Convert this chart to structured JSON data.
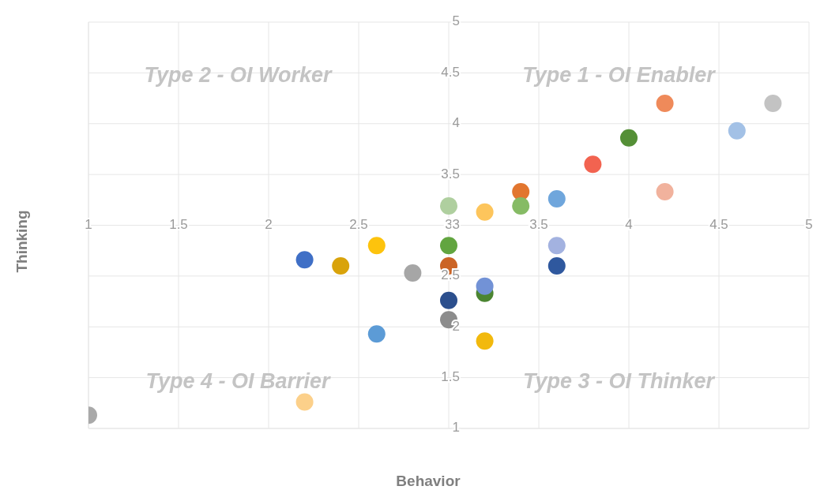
{
  "chart_data": {
    "type": "scatter",
    "xlabel": "Behavior",
    "ylabel": "Thinking",
    "annotations": [
      "Type 2 - OI Worker",
      "Type 1 - OI Enabler",
      "Type 4 - OI Barrier",
      "Type 3 - OI Thinker"
    ],
    "x": [
      4.2,
      4.8,
      4.6,
      4.0,
      3.8,
      4.2,
      3.4,
      3.6,
      3.4,
      3.0,
      3.2,
      2.6,
      3.0,
      3.6,
      2.2,
      2.4,
      3.0,
      3.6,
      2.8,
      3.2,
      3.2,
      3.0,
      3.0,
      2.6,
      3.2,
      2.2,
      1.0
    ],
    "values": [
      4.2,
      4.2,
      3.93,
      3.86,
      3.6,
      3.33,
      3.33,
      3.26,
      3.19,
      3.19,
      3.13,
      2.8,
      2.8,
      2.8,
      2.66,
      2.6,
      2.6,
      2.6,
      2.53,
      2.33,
      2.4,
      2.26,
      2.07,
      1.93,
      1.86,
      1.26,
      1.13
    ],
    "colors": [
      "#ef8a5a",
      "#c3c3c3",
      "#a3c1e6",
      "#548f36",
      "#f26350",
      "#f1b29d",
      "#e2762f",
      "#6fa6dc",
      "#86bb65",
      "#afcf9f",
      "#fdc55c",
      "#fdc30d",
      "#62a540",
      "#a3b2e0",
      "#3f6fc6",
      "#d9a30b",
      "#cb6426",
      "#2f589e",
      "#a6a6a6",
      "#4b8531",
      "#7292d6",
      "#2c4f8d",
      "#8c8c8c",
      "#5c9bd6",
      "#f2b90d",
      "#fcd08a",
      "#a9a9a9"
    ],
    "xlim": [
      1,
      5
    ],
    "xticks": [
      1,
      1.5,
      2,
      2.5,
      3,
      3.5,
      4,
      4.5,
      5
    ],
    "ylim": [
      1,
      5
    ],
    "yticks": [
      1,
      1.5,
      2,
      2.5,
      3,
      3.5,
      4,
      4.5,
      5
    ],
    "grid": true,
    "marker": "circle"
  }
}
